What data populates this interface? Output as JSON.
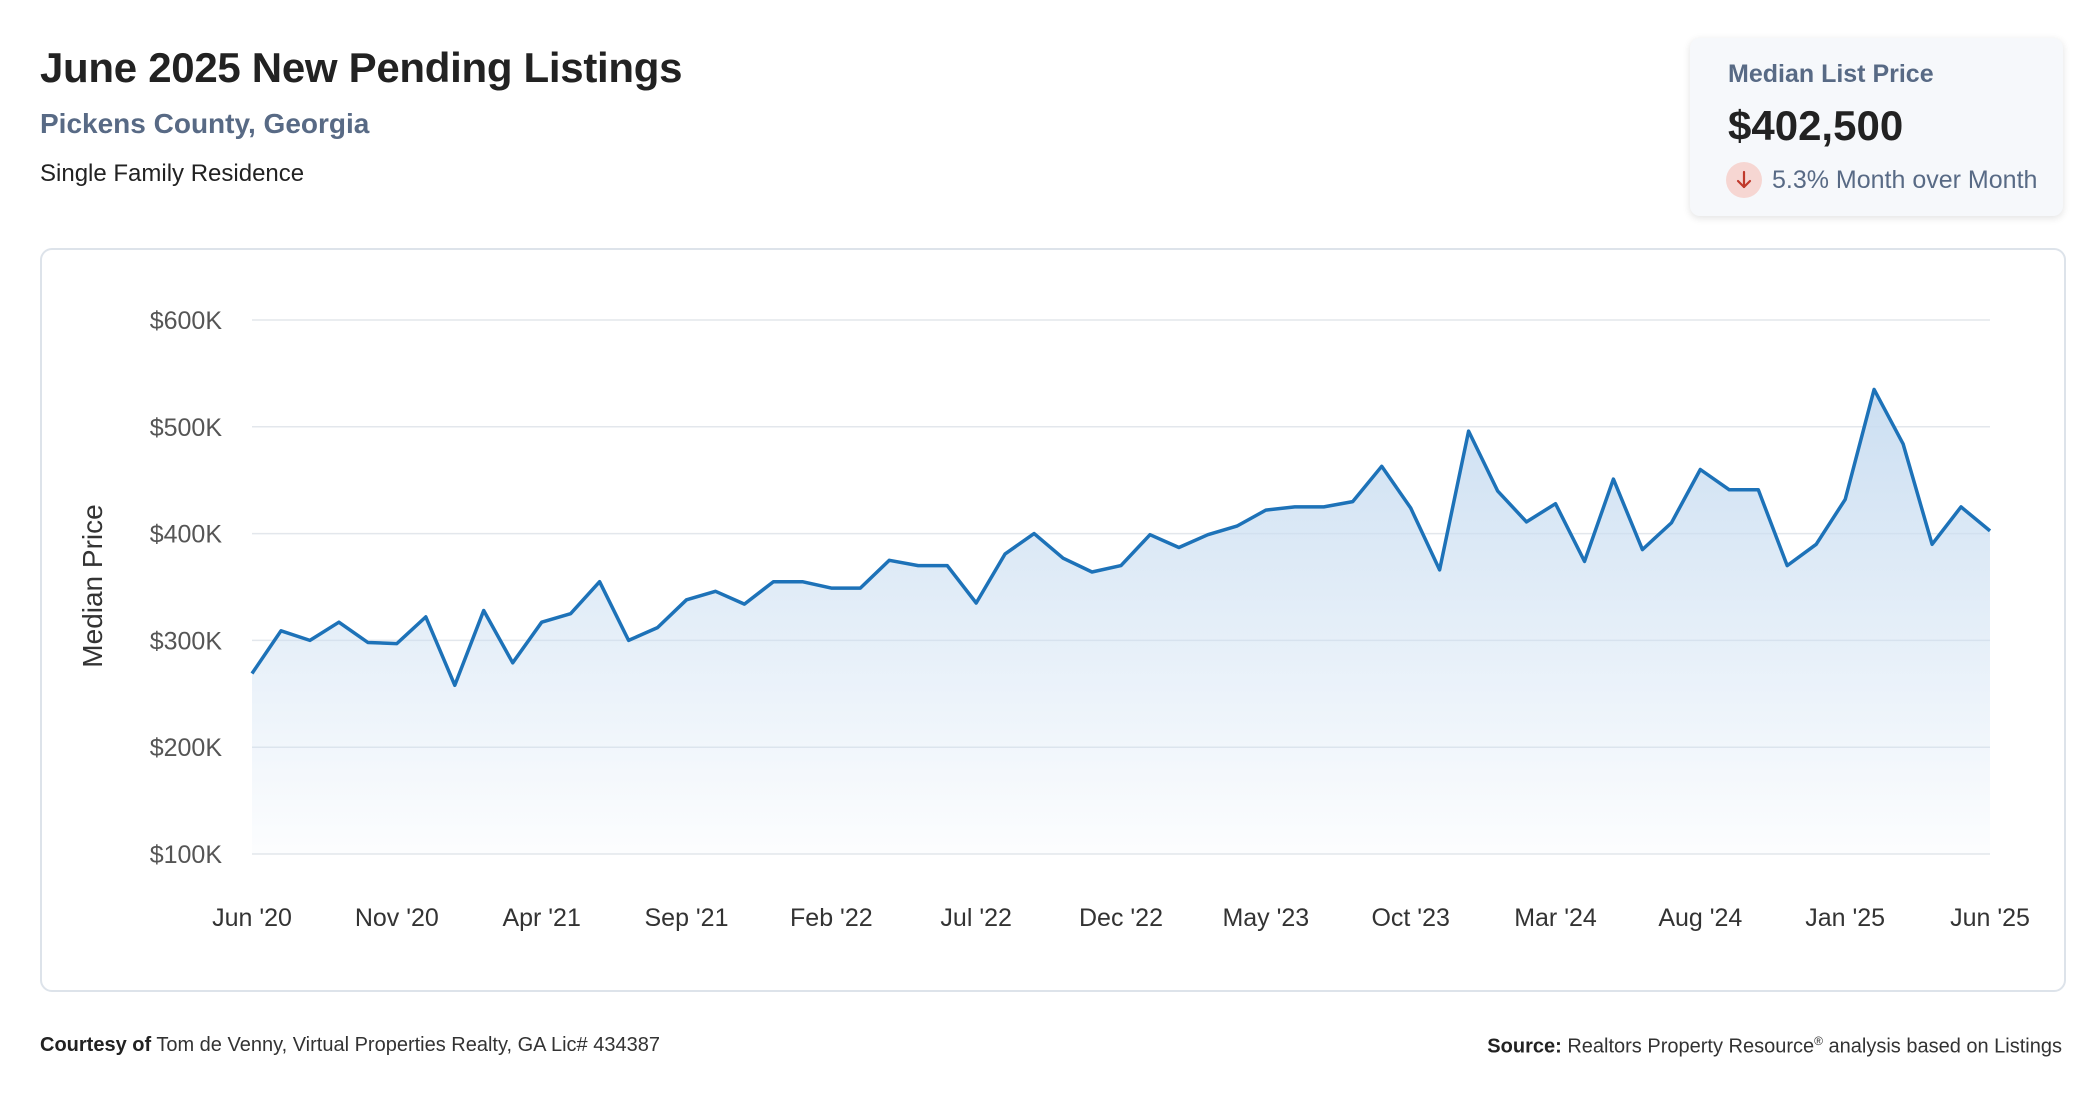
{
  "header": {
    "title": "June 2025 New Pending Listings",
    "location": "Pickens County, Georgia",
    "property_type": "Single Family Residence"
  },
  "stat_card": {
    "label": "Median List Price",
    "value": "$402,500",
    "change": "5.3% Month over Month",
    "direction_icon": "arrow-down-icon",
    "change_color": "#c0392b"
  },
  "footer": {
    "courtesy_label": "Courtesy of",
    "courtesy_text": "Tom de Venny, Virtual Properties Realty, GA Lic# 434387",
    "source_label": "Source:",
    "source_text_pre": "Realtors Property Resource",
    "source_reg": "®",
    "source_text_post": " analysis based on Listings"
  },
  "colors": {
    "line": "#1d72b8",
    "area_top": "#c9ddf1",
    "grid": "#e3e7ec",
    "text_muted": "#586a85"
  },
  "chart_data": {
    "type": "area",
    "ylabel": "Median Price",
    "xlabel": "",
    "ylim": [
      100000,
      600000
    ],
    "yticks": [
      {
        "value": 600000,
        "label": "$600K"
      },
      {
        "value": 500000,
        "label": "$500K"
      },
      {
        "value": 400000,
        "label": "$400K"
      },
      {
        "value": 300000,
        "label": "$300K"
      },
      {
        "value": 200000,
        "label": "$200K"
      },
      {
        "value": 100000,
        "label": "$100K"
      }
    ],
    "xtick_labels": [
      "Jun '20",
      "Nov '20",
      "Apr '21",
      "Sep '21",
      "Feb '22",
      "Jul '22",
      "Dec '22",
      "May '23",
      "Oct '23",
      "Mar '24",
      "Aug '24",
      "Jan '25",
      "Jun '25"
    ],
    "grid": true,
    "legend": "none",
    "series": [
      {
        "x": [
          "2020-06",
          "2020-07",
          "2020-08",
          "2020-09",
          "2020-10",
          "2020-11",
          "2020-12",
          "2021-01",
          "2021-02",
          "2021-03",
          "2021-04",
          "2021-05",
          "2021-06",
          "2021-07",
          "2021-08",
          "2021-09",
          "2021-10",
          "2021-11",
          "2021-12",
          "2022-01",
          "2022-02",
          "2022-03",
          "2022-04",
          "2022-05",
          "2022-06",
          "2022-07",
          "2022-08",
          "2022-09",
          "2022-10",
          "2022-11",
          "2022-12",
          "2023-01",
          "2023-02",
          "2023-03",
          "2023-04",
          "2023-05",
          "2023-06",
          "2023-07",
          "2023-08",
          "2023-09",
          "2023-10",
          "2023-11",
          "2023-12",
          "2024-01",
          "2024-02",
          "2024-03",
          "2024-04",
          "2024-05",
          "2024-06",
          "2024-07",
          "2024-08",
          "2024-09",
          "2024-10",
          "2024-11",
          "2024-12",
          "2025-01",
          "2025-02",
          "2025-03",
          "2025-04",
          "2025-05",
          "2025-06"
        ],
        "values": [
          269000,
          309000,
          300000,
          317000,
          298000,
          297000,
          322000,
          258000,
          328000,
          279000,
          317000,
          325000,
          355000,
          300000,
          312000,
          338000,
          346000,
          334000,
          355000,
          355000,
          349000,
          349000,
          375000,
          370000,
          370000,
          335000,
          381000,
          400000,
          377000,
          364000,
          370000,
          399000,
          387000,
          399000,
          407000,
          422000,
          425000,
          425000,
          430000,
          463000,
          424000,
          366000,
          496000,
          440000,
          411000,
          428000,
          374000,
          451000,
          385000,
          410000,
          460000,
          441000,
          441000,
          370000,
          390000,
          432000,
          535000,
          484000,
          390000,
          425000,
          402500
        ]
      }
    ]
  }
}
